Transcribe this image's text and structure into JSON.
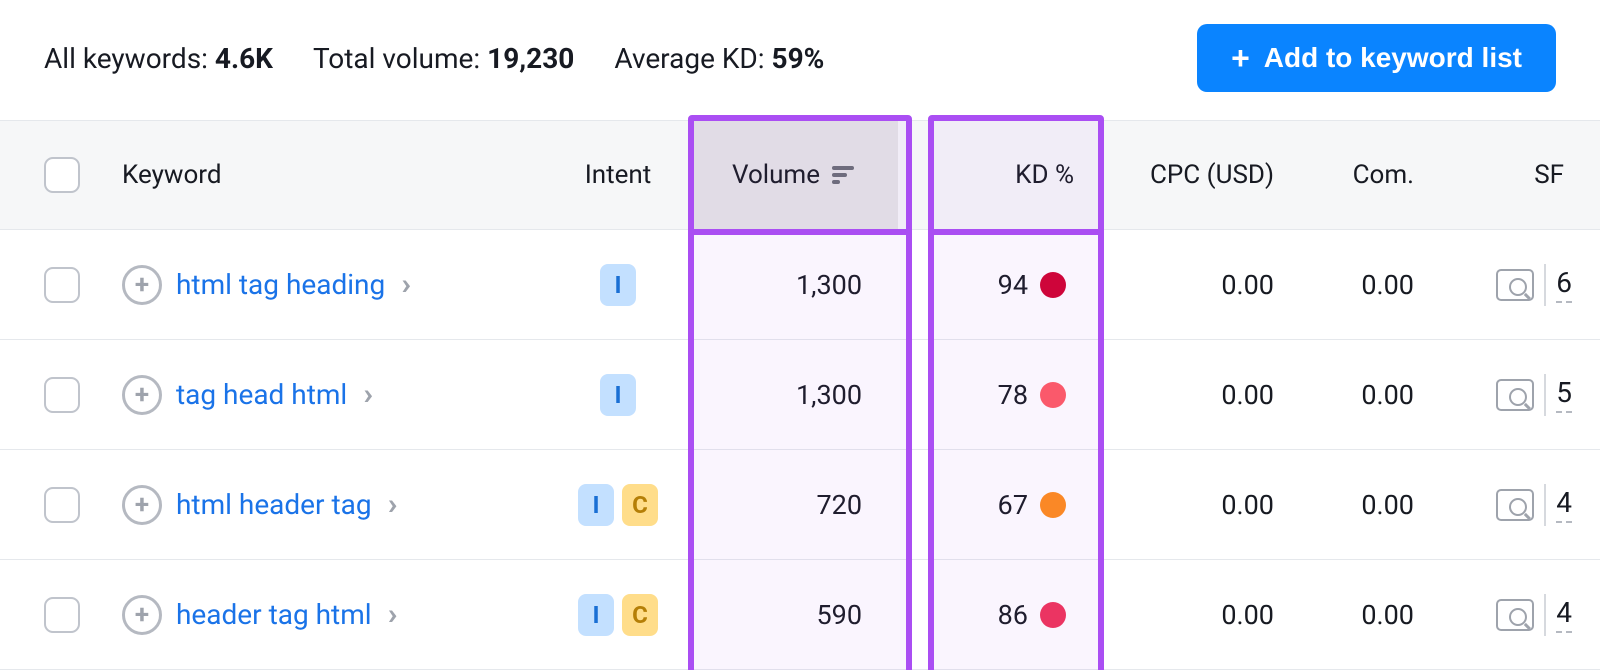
{
  "stats": {
    "all_keywords_label": "All keywords:",
    "all_keywords_value": "4.6K",
    "total_volume_label": "Total volume:",
    "total_volume_value": "19,230",
    "avg_kd_label": "Average KD:",
    "avg_kd_value": "59%"
  },
  "add_button_label": "Add to keyword list",
  "columns": {
    "keyword": "Keyword",
    "intent": "Intent",
    "volume": "Volume",
    "kd": "KD %",
    "cpc": "CPC (USD)",
    "com": "Com.",
    "sf": "SF"
  },
  "highlight": {
    "color": "#aa4ef3",
    "columns": [
      "volume",
      "kd"
    ]
  },
  "kd_colors": {
    "red_dark": "#d1002f",
    "red": "#ff4a63",
    "orange": "#ff8c1a",
    "pink": "#ff4a7a"
  },
  "intent_styles": {
    "I": {
      "bg": "#c3e0ff",
      "fg": "#1a6fd4"
    },
    "C": {
      "bg": "#ffdd8a",
      "fg": "#b57f07"
    }
  },
  "rows": [
    {
      "keyword": "html tag heading",
      "intents": [
        "I"
      ],
      "volume": "1,300",
      "kd": "94",
      "kd_color": "#d1002f",
      "cpc": "0.00",
      "com": "0.00",
      "sf": "6"
    },
    {
      "keyword": "tag head html",
      "intents": [
        "I"
      ],
      "volume": "1,300",
      "kd": "78",
      "kd_color": "#ff5a63",
      "cpc": "0.00",
      "com": "0.00",
      "sf": "5"
    },
    {
      "keyword": "html header tag",
      "intents": [
        "I",
        "C"
      ],
      "volume": "720",
      "kd": "67",
      "kd_color": "#ff8c1a",
      "cpc": "0.00",
      "com": "0.00",
      "sf": "4"
    },
    {
      "keyword": "header tag html",
      "intents": [
        "I",
        "C"
      ],
      "volume": "590",
      "kd": "86",
      "kd_color": "#f0325a",
      "cpc": "0.00",
      "com": "0.00",
      "sf": "4"
    }
  ]
}
